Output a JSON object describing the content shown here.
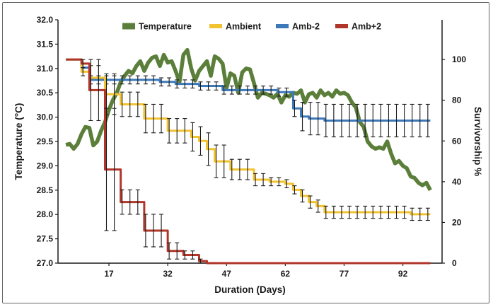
{
  "chart_data": {
    "type": "line",
    "title": "",
    "xlabel": "Duration (Days)",
    "ylabel_left": "Temperature (°C)",
    "ylabel_right": "Survivorship %",
    "x_ticks": [
      17,
      32,
      47,
      62,
      77,
      92
    ],
    "xlim": [
      4,
      102
    ],
    "ylim_left": [
      27.0,
      32.0
    ],
    "ylim_right": [
      0,
      119.5
    ],
    "y_ticks_left": [
      "27.0",
      "27.5",
      "28.0",
      "28.5",
      "29.0",
      "29.5",
      "30.0",
      "30.5",
      "31.0",
      "31.5",
      "32.0"
    ],
    "y_ticks_right": [
      "0",
      "20",
      "40",
      "60",
      "80",
      "100"
    ],
    "legend_position": "top",
    "grid": false,
    "colors": {
      "Temperature": "#5b7f3a",
      "Ambient": "#f1c232",
      "Amb-2": "#3d78b9",
      "Amb+2": "#b0362a"
    },
    "series": [
      {
        "name": "Temperature",
        "axis": "left",
        "style": "line",
        "x": [
          6,
          7,
          8,
          9,
          10,
          11,
          12,
          13,
          14,
          15,
          16,
          17,
          18,
          19,
          20,
          21,
          22,
          23,
          24,
          25,
          26,
          27,
          28,
          29,
          30,
          31,
          32,
          33,
          34,
          35,
          36,
          37,
          38,
          39,
          40,
          41,
          42,
          43,
          44,
          45,
          46,
          47,
          48,
          49,
          50,
          51,
          52,
          53,
          54,
          55,
          56,
          57,
          58,
          59,
          60,
          61,
          62,
          63,
          64,
          65,
          66,
          67,
          68,
          69,
          70,
          71,
          72,
          73,
          74,
          75,
          76,
          77,
          78,
          79,
          80,
          81,
          82,
          83,
          84,
          85,
          86,
          87,
          88,
          89,
          90,
          91,
          92,
          93,
          94,
          95,
          96,
          97,
          98,
          99
        ],
        "y": [
          29.43,
          29.45,
          29.35,
          29.45,
          29.65,
          29.8,
          29.78,
          29.42,
          29.5,
          29.72,
          29.9,
          30.15,
          30.35,
          30.5,
          30.72,
          30.85,
          30.95,
          30.9,
          31.05,
          31.15,
          30.95,
          31.12,
          31.22,
          31.25,
          31.05,
          31.28,
          31.12,
          31.15,
          30.95,
          30.72,
          31.28,
          31.38,
          31.0,
          30.75,
          30.95,
          31.05,
          31.15,
          30.85,
          31.25,
          31.2,
          31.1,
          30.6,
          30.9,
          30.85,
          30.5,
          30.92,
          31.0,
          30.98,
          30.7,
          30.4,
          30.5,
          30.48,
          30.45,
          30.4,
          30.48,
          30.3,
          30.45,
          30.42,
          30.5,
          30.48,
          30.55,
          30.3,
          30.47,
          30.5,
          30.4,
          30.55,
          30.45,
          30.5,
          30.42,
          30.55,
          30.48,
          30.5,
          30.45,
          30.3,
          30.2,
          29.9,
          29.8,
          29.5,
          29.4,
          29.35,
          29.38,
          29.35,
          29.5,
          29.25,
          29.05,
          29.1,
          29.0,
          28.95,
          28.78,
          28.75,
          28.65,
          28.6,
          28.65,
          28.5
        ],
        "error": []
      },
      {
        "name": "Ambient",
        "axis": "right",
        "style": "step",
        "x": [
          6,
          8,
          10,
          12,
          14,
          16,
          18,
          20,
          22,
          24,
          26,
          28,
          30,
          32,
          34,
          36,
          38,
          40,
          42,
          44,
          46,
          48,
          50,
          52,
          54,
          56,
          58,
          60,
          62,
          64,
          66,
          68,
          70,
          72,
          74,
          76,
          78,
          80,
          82,
          84,
          86,
          88,
          90,
          92,
          94,
          96,
          98
        ],
        "y": [
          100,
          100,
          94,
          91,
          91,
          83,
          83,
          78,
          78,
          78,
          71,
          71,
          71,
          65,
          65,
          65,
          62,
          60,
          56,
          50,
          50,
          46,
          46,
          46,
          41,
          41,
          40,
          40,
          39,
          36,
          33,
          30,
          28,
          25,
          25,
          25,
          25,
          25,
          25,
          25,
          25,
          25,
          25,
          25,
          24,
          24,
          24
        ],
        "error": [
          0,
          0,
          2,
          6,
          6,
          10,
          10,
          6,
          6,
          6,
          7,
          7,
          7,
          6,
          6,
          6,
          7,
          7,
          8,
          8,
          8,
          5,
          5,
          5,
          3,
          3,
          2,
          2,
          2,
          2,
          3,
          3,
          3,
          3,
          3,
          3,
          3,
          3,
          3,
          3,
          3,
          3,
          3,
          3,
          3,
          3,
          3
        ]
      },
      {
        "name": "Amb-2",
        "axis": "right",
        "style": "step",
        "x": [
          6,
          8,
          10,
          12,
          14,
          16,
          18,
          20,
          22,
          24,
          26,
          28,
          30,
          32,
          34,
          36,
          38,
          40,
          42,
          44,
          46,
          48,
          50,
          52,
          54,
          56,
          58,
          60,
          62,
          64,
          66,
          68,
          70,
          72,
          74,
          76,
          78,
          80,
          82,
          84,
          86,
          88,
          90,
          92,
          94,
          96,
          98
        ],
        "y": [
          100,
          100,
          96,
          90,
          90,
          90,
          90,
          90,
          90,
          90,
          90,
          90,
          89,
          89,
          88,
          88,
          88,
          87,
          87,
          87,
          85,
          85,
          85,
          85,
          85,
          85,
          85,
          84,
          84,
          76,
          72,
          71,
          71,
          70,
          70,
          70,
          70,
          70,
          70,
          70,
          70,
          70,
          70,
          70,
          70,
          70,
          70
        ],
        "error": [
          0,
          0,
          2,
          2,
          2,
          2,
          2,
          2,
          2,
          2,
          2,
          2,
          2,
          2,
          2,
          2,
          2,
          2,
          2,
          2,
          2,
          2,
          2,
          2,
          2,
          2,
          2,
          2,
          2,
          4,
          7,
          8,
          8,
          8,
          8,
          8,
          8,
          8,
          8,
          8,
          8,
          8,
          8,
          8,
          8,
          8,
          8
        ]
      },
      {
        "name": "Amb+2",
        "axis": "right",
        "style": "step",
        "x": [
          6,
          8,
          10,
          12,
          14,
          16,
          18,
          20,
          22,
          24,
          26,
          28,
          30,
          32,
          34,
          36,
          38,
          40,
          42,
          44,
          46,
          48,
          50,
          52,
          54,
          56,
          58,
          60,
          62,
          64,
          66,
          68,
          70,
          72,
          74,
          76,
          78,
          80,
          82,
          84,
          86,
          88,
          90,
          92,
          94,
          96,
          98
        ],
        "y": [
          100,
          100,
          98,
          85,
          85,
          46,
          46,
          30,
          30,
          30,
          16,
          16,
          16,
          6,
          6,
          4,
          4,
          1,
          0,
          0,
          0,
          0,
          0,
          0,
          0,
          0,
          0,
          0,
          0,
          0,
          0,
          0,
          0,
          0,
          0,
          0,
          0,
          0,
          0,
          0,
          0,
          0,
          0,
          0,
          0,
          0,
          0
        ],
        "error": [
          0,
          0,
          2,
          15,
          15,
          30,
          30,
          6,
          6,
          6,
          8,
          8,
          8,
          4,
          4,
          2,
          2,
          1,
          0,
          0,
          0,
          0,
          0,
          0,
          0,
          0,
          0,
          0,
          0,
          0,
          0,
          0,
          0,
          0,
          0,
          0,
          0,
          0,
          0,
          0,
          0,
          0,
          0,
          0,
          0,
          0,
          0
        ]
      }
    ]
  }
}
